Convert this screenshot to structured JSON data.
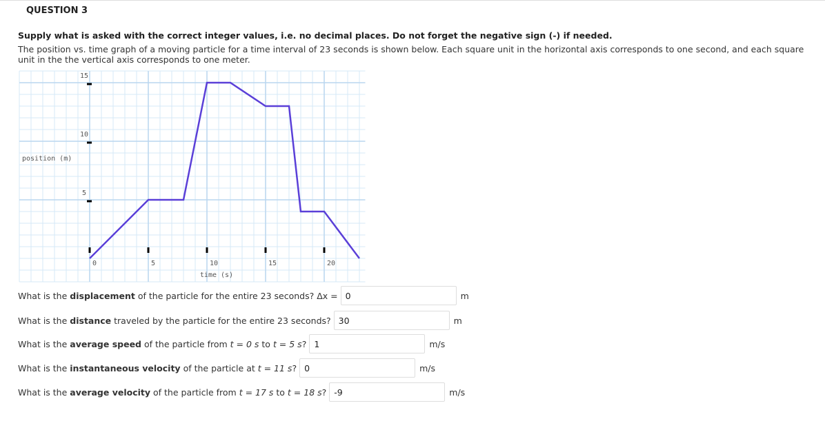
{
  "header": {
    "title": "QUESTION 3"
  },
  "instruction": "Supply what is asked with the correct integer values, i.e. no decimal places. Do not forget the negative sign (-) if needed.",
  "description": "The position vs. time graph of a moving particle for a time interval of 23 seconds is shown below. Each square unit in the horizontal axis corresponds to one second, and each square unit in the the vertical axis corresponds to one meter.",
  "chart_data": {
    "type": "line",
    "xlabel": "time (s)",
    "ylabel": "position (m)",
    "x": [
      0,
      5,
      8,
      10,
      12,
      15,
      17,
      18,
      20,
      23
    ],
    "values": [
      0,
      5,
      5,
      15,
      15,
      13,
      13,
      4,
      4,
      0
    ],
    "color": "#5a3fd8",
    "xlim": [
      -6,
      23.5
    ],
    "ylim": [
      -2,
      16
    ],
    "xticks": [
      0,
      5,
      10,
      15,
      20
    ],
    "yticks": [
      5,
      10,
      15
    ],
    "grid": true
  },
  "questions": [
    {
      "parts": [
        {
          "text": "What is the "
        },
        {
          "text": "displacement",
          "bold": true
        },
        {
          "text": " of the particle for the entire 23 seconds? Δx ="
        }
      ],
      "answer": 0,
      "unit": "m"
    },
    {
      "parts": [
        {
          "text": "What is the "
        },
        {
          "text": "distance",
          "bold": true
        },
        {
          "text": " traveled by the particle for the entire 23 seconds?"
        }
      ],
      "answer": 30,
      "unit": "m"
    },
    {
      "parts": [
        {
          "text": "What is the "
        },
        {
          "text": "average speed",
          "bold": true
        },
        {
          "text": " of the particle from "
        },
        {
          "text": "t = 0 s",
          "italic": true
        },
        {
          "text": " to "
        },
        {
          "text": "t = 5 s",
          "italic": true
        },
        {
          "text": "?"
        }
      ],
      "answer": 1,
      "unit": "m/s"
    },
    {
      "parts": [
        {
          "text": "What is the "
        },
        {
          "text": "instantaneous velocity",
          "bold": true
        },
        {
          "text": " of the particle at "
        },
        {
          "text": "t = 11 s",
          "italic": true
        },
        {
          "text": "?"
        }
      ],
      "answer": 0,
      "unit": "m/s"
    },
    {
      "parts": [
        {
          "text": "What is the "
        },
        {
          "text": "average velocity",
          "bold": true
        },
        {
          "text": " of the particle from "
        },
        {
          "text": "t = 17 s",
          "italic": true
        },
        {
          "text": " to "
        },
        {
          "text": "t = 18 s",
          "italic": true
        },
        {
          "text": "?"
        }
      ],
      "answer": -9,
      "unit": "m/s"
    }
  ]
}
